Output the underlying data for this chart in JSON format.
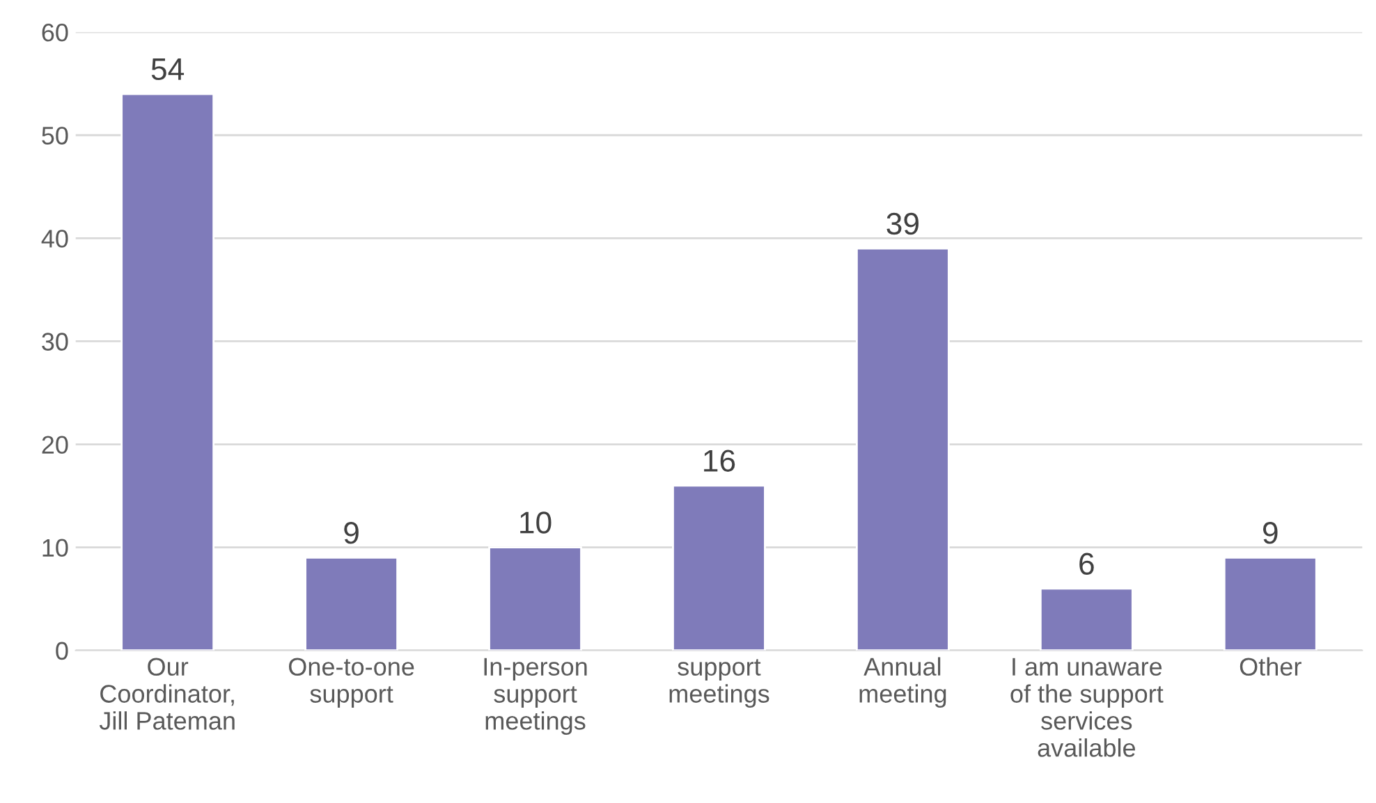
{
  "chart_data": {
    "type": "bar",
    "categories": [
      "Our\nCoordinator,\nJill Pateman",
      "One-to-one\nsupport",
      "In-person\nsupport\nmeetings",
      "support\nmeetings",
      "Annual\nmeeting",
      "I am unaware\nof the support\nservices\navailable",
      "Other"
    ],
    "values": [
      54,
      9,
      10,
      16,
      39,
      6,
      9
    ],
    "color": "#7f7bba",
    "ylim": [
      0,
      60
    ],
    "yticks": [
      0,
      10,
      20,
      30,
      40,
      50,
      60
    ],
    "grid": "y",
    "data_labels": true,
    "legend": false
  }
}
